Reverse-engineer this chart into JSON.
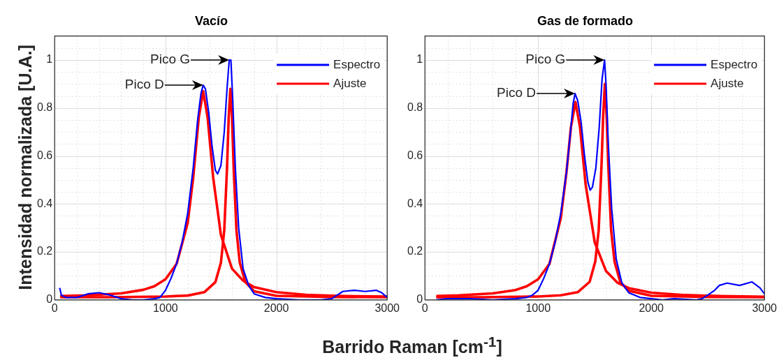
{
  "chart_data": [
    {
      "type": "line",
      "title": "Vacío",
      "xlabel": "Barrido Raman [cm$^{-1}$]",
      "ylabel": "Intensidad normalizada [U.A.]",
      "xlim": [
        0,
        3000
      ],
      "ylim": [
        0,
        1.1
      ],
      "xticks": [
        0,
        {
          "value": 200,
          "label": null
        },
        {
          "value": 400,
          "label": null
        },
        {
          "value": 600,
          "label": null
        },
        {
          "value": 800,
          "label": null
        },
        1000,
        {
          "value": 1200,
          "label": null
        },
        {
          "value": 1400,
          "label": null
        },
        {
          "value": 1600,
          "label": null
        },
        {
          "value": 1800,
          "label": null
        },
        2000,
        {
          "value": 2200,
          "label": null
        },
        {
          "value": 2400,
          "label": null
        },
        {
          "value": 2600,
          "label": null
        },
        {
          "value": 2800,
          "label": null
        },
        3000
      ],
      "yticks": [
        0,
        {
          "value": 0.05,
          "label": null
        },
        {
          "value": 0.1,
          "label": null
        },
        {
          "value": 0.15,
          "label": null
        },
        0.2,
        {
          "value": 0.25,
          "label": null
        },
        {
          "value": 0.3,
          "label": null
        },
        {
          "value": 0.35,
          "label": null
        },
        0.4,
        {
          "value": 0.45,
          "label": null
        },
        {
          "value": 0.5,
          "label": null
        },
        {
          "value": 0.55,
          "label": null
        },
        0.6,
        {
          "value": 0.65,
          "label": null
        },
        {
          "value": 0.7,
          "label": null
        },
        {
          "value": 0.75,
          "label": null
        },
        0.8,
        {
          "value": 0.85,
          "label": null
        },
        {
          "value": 0.9,
          "label": null
        },
        {
          "value": 0.95,
          "label": null
        },
        1,
        {
          "value": 1.05,
          "label": null
        }
      ],
      "grid": true,
      "legend": "top right",
      "annotations": [
        {
          "text": "Pico G",
          "x": 1575,
          "y": 1
        },
        {
          "text": "Pico D",
          "x": 1340,
          "y": 0.895
        }
      ],
      "series": [
        {
          "name": "Espectro",
          "color": "#0000ff",
          "x": [
            46,
            60,
            100,
            200,
            300,
            400,
            500,
            600,
            700,
            800,
            900,
            950,
            1000,
            1050,
            1100,
            1150,
            1200,
            1250,
            1290,
            1320,
            1340,
            1360,
            1390,
            1420,
            1450,
            1470,
            1500,
            1530,
            1555,
            1575,
            1590,
            1605,
            1630,
            1660,
            1700,
            1750,
            1800,
            1900,
            2000,
            2200,
            2400,
            2500,
            2550,
            2600,
            2700,
            2800,
            2900,
            2950,
            3000
          ],
          "values": [
            0.05,
            0.02,
            0.01,
            0.01,
            0.025,
            0.03,
            0.02,
            0.005,
            0,
            0,
            0.005,
            0.01,
            0.04,
            0.09,
            0.15,
            0.24,
            0.36,
            0.55,
            0.75,
            0.86,
            0.895,
            0.88,
            0.78,
            0.64,
            0.54,
            0.525,
            0.56,
            0.7,
            0.88,
            1,
            1,
            0.85,
            0.55,
            0.3,
            0.13,
            0.06,
            0.025,
            0.01,
            0.005,
            0,
            0,
            0.005,
            0.02,
            0.035,
            0.04,
            0.035,
            0.04,
            0.03,
            0.01
          ]
        },
        {
          "name": "Ajuste",
          "color": "#ff0000",
          "x": [
            50,
            300,
            600,
            800,
            900,
            1000,
            1100,
            1200,
            1250,
            1300,
            1340,
            1380,
            1430,
            1500,
            1600,
            1700,
            1800,
            2000,
            2300,
            2600,
            3000
          ],
          "values": [
            0.016,
            0.019,
            0.027,
            0.042,
            0.057,
            0.086,
            0.15,
            0.32,
            0.51,
            0.76,
            0.87,
            0.76,
            0.51,
            0.27,
            0.13,
            0.08,
            0.053,
            0.032,
            0.02,
            0.016,
            0.014
          ]
        },
        {
          "color": "#ff0000",
          "x": [
            50,
            500,
            1000,
            1200,
            1350,
            1450,
            1500,
            1530,
            1555,
            1570,
            1585,
            1600,
            1615,
            1640,
            1670,
            1720,
            1800,
            2000,
            2500,
            3000
          ],
          "values": [
            0.011,
            0.011,
            0.014,
            0.018,
            0.032,
            0.074,
            0.155,
            0.29,
            0.55,
            0.76,
            0.88,
            0.76,
            0.55,
            0.29,
            0.155,
            0.074,
            0.036,
            0.017,
            0.012,
            0.011
          ]
        }
      ]
    },
    {
      "type": "line",
      "title": "Gas de formado",
      "xlim": [
        0,
        3000
      ],
      "ylim": [
        0,
        1.1
      ],
      "xticks": [
        0,
        {
          "value": 200,
          "label": null
        },
        {
          "value": 400,
          "label": null
        },
        {
          "value": 600,
          "label": null
        },
        {
          "value": 800,
          "label": null
        },
        1000,
        {
          "value": 1200,
          "label": null
        },
        {
          "value": 1400,
          "label": null
        },
        {
          "value": 1600,
          "label": null
        },
        {
          "value": 1800,
          "label": null
        },
        2000,
        {
          "value": 2200,
          "label": null
        },
        {
          "value": 2400,
          "label": null
        },
        {
          "value": 2600,
          "label": null
        },
        {
          "value": 2800,
          "label": null
        },
        3000
      ],
      "yticks": [
        0,
        {
          "value": 0.05,
          "label": null
        },
        {
          "value": 0.1,
          "label": null
        },
        {
          "value": 0.15,
          "label": null
        },
        0.2,
        {
          "value": 0.25,
          "label": null
        },
        {
          "value": 0.3,
          "label": null
        },
        {
          "value": 0.35,
          "label": null
        },
        0.4,
        {
          "value": 0.45,
          "label": null
        },
        {
          "value": 0.5,
          "label": null
        },
        {
          "value": 0.55,
          "label": null
        },
        0.6,
        {
          "value": 0.65,
          "label": null
        },
        {
          "value": 0.7,
          "label": null
        },
        {
          "value": 0.75,
          "label": null
        },
        0.8,
        {
          "value": 0.85,
          "label": null
        },
        {
          "value": 0.9,
          "label": null
        },
        {
          "value": 0.95,
          "label": null
        },
        1,
        {
          "value": 1.05,
          "label": null
        }
      ],
      "grid": true,
      "legend": "top right",
      "annotations": [
        {
          "text": "Pico G",
          "x": 1587,
          "y": 1
        },
        {
          "text": "Pico D",
          "x": 1326,
          "y": 0.86
        }
      ],
      "series": [
        {
          "name": "Espectro",
          "color": "#0000ff",
          "x": [
            100,
            200,
            400,
            600,
            800,
            900,
            950,
            1000,
            1050,
            1100,
            1150,
            1200,
            1250,
            1290,
            1310,
            1326,
            1350,
            1380,
            1410,
            1440,
            1460,
            1480,
            1510,
            1540,
            1565,
            1587,
            1600,
            1620,
            1650,
            1690,
            1740,
            1800,
            1900,
            2000,
            2100,
            2200,
            2400,
            2450,
            2500,
            2560,
            2600,
            2670,
            2780,
            2890,
            2960,
            3000
          ],
          "values": [
            0,
            0.005,
            0.005,
            0,
            0.005,
            0.01,
            0.02,
            0.04,
            0.09,
            0.15,
            0.24,
            0.36,
            0.53,
            0.72,
            0.82,
            0.86,
            0.83,
            0.74,
            0.6,
            0.49,
            0.457,
            0.47,
            0.55,
            0.72,
            0.92,
            1,
            0.9,
            0.65,
            0.38,
            0.17,
            0.07,
            0.03,
            0.01,
            0.005,
            0,
            0.005,
            0,
            0.005,
            0.02,
            0.04,
            0.06,
            0.07,
            0.06,
            0.075,
            0.05,
            0.025
          ]
        },
        {
          "name": "Ajuste",
          "color": "#ff0000",
          "x": [
            100,
            300,
            600,
            800,
            900,
            1000,
            1100,
            1200,
            1250,
            1290,
            1330,
            1370,
            1420,
            1500,
            1600,
            1700,
            1800,
            2000,
            2300,
            2600,
            3000
          ],
          "values": [
            0.016,
            0.019,
            0.027,
            0.041,
            0.057,
            0.086,
            0.15,
            0.34,
            0.53,
            0.72,
            0.825,
            0.72,
            0.48,
            0.24,
            0.12,
            0.072,
            0.049,
            0.03,
            0.02,
            0.016,
            0.013
          ]
        },
        {
          "color": "#ff0000",
          "x": [
            100,
            500,
            1000,
            1200,
            1350,
            1455,
            1505,
            1535,
            1560,
            1575,
            1590,
            1605,
            1620,
            1645,
            1675,
            1725,
            1800,
            2000,
            2500,
            3000
          ],
          "values": [
            0.011,
            0.011,
            0.014,
            0.019,
            0.032,
            0.075,
            0.16,
            0.29,
            0.56,
            0.77,
            0.9,
            0.77,
            0.56,
            0.29,
            0.16,
            0.075,
            0.038,
            0.017,
            0.012,
            0.011
          ]
        }
      ]
    }
  ]
}
